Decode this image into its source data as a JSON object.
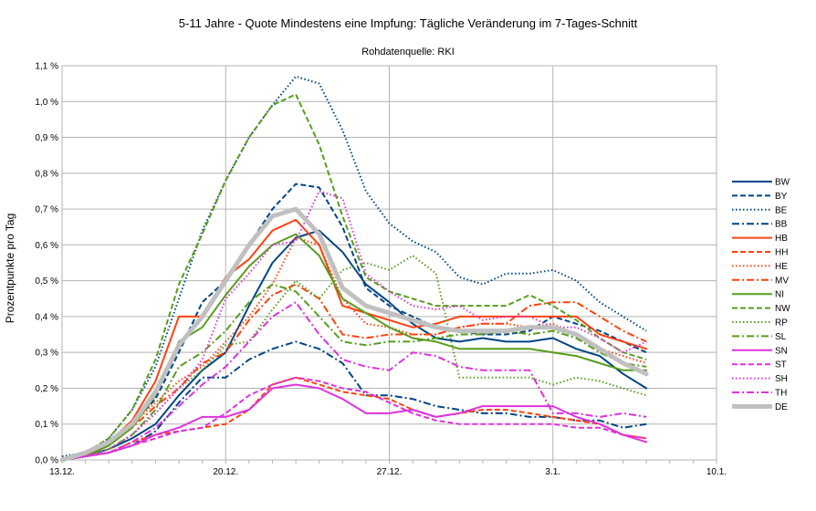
{
  "chart_data": {
    "type": "line",
    "title": "5-11 Jahre - Quote Mindestens eine Impfung: Tägliche Veränderung im 7-Tages-Schnitt",
    "subtitle": "Rohdatenquelle: RKI",
    "xlabel": "",
    "ylabel": "Prozentpunkte pro Tag",
    "x_ticks": [
      "13.12.",
      "20.12.",
      "27.12.",
      "3.1.",
      "10.1."
    ],
    "xlim": [
      0,
      28
    ],
    "y_ticks": [
      "0,0 %",
      "0,1 %",
      "0,2 %",
      "0,3 %",
      "0,4 %",
      "0,5 %",
      "0,6 %",
      "0,7 %",
      "0,8 %",
      "0,9 %",
      "1,0 %",
      "1,1 %"
    ],
    "ylim": [
      0,
      1.1
    ],
    "grid": true,
    "legend_position": "right",
    "x": [
      0,
      1,
      2,
      3,
      4,
      5,
      6,
      7,
      8,
      9,
      10,
      11,
      12,
      13,
      14,
      15,
      16,
      17,
      18,
      19,
      20,
      21,
      22,
      23,
      24,
      25
    ],
    "series": [
      {
        "name": "BW",
        "color": "#004586",
        "dash": "solid",
        "width": 2,
        "values": [
          0.0,
          0.01,
          0.03,
          0.06,
          0.1,
          0.18,
          0.25,
          0.3,
          0.43,
          0.55,
          0.62,
          0.64,
          0.58,
          0.49,
          0.44,
          0.38,
          0.34,
          0.33,
          0.34,
          0.33,
          0.33,
          0.34,
          0.31,
          0.29,
          0.24,
          0.2
        ]
      },
      {
        "name": "BY",
        "color": "#004586",
        "dash": "6,3",
        "width": 2,
        "values": [
          0.0,
          0.02,
          0.05,
          0.1,
          0.17,
          0.3,
          0.44,
          0.5,
          0.6,
          0.7,
          0.77,
          0.76,
          0.65,
          0.48,
          0.43,
          0.4,
          0.37,
          0.36,
          0.35,
          0.35,
          0.36,
          0.4,
          0.38,
          0.36,
          0.33,
          0.3
        ]
      },
      {
        "name": "BE",
        "color": "#004586",
        "dash": "1.5,2.5",
        "width": 2,
        "values": [
          0.01,
          0.02,
          0.06,
          0.14,
          0.26,
          0.45,
          0.64,
          0.78,
          0.9,
          0.99,
          1.07,
          1.05,
          0.92,
          0.75,
          0.66,
          0.61,
          0.58,
          0.51,
          0.49,
          0.52,
          0.52,
          0.53,
          0.5,
          0.44,
          0.4,
          0.36
        ]
      },
      {
        "name": "BB",
        "color": "#004586",
        "dash": "8,3,2,3",
        "width": 2,
        "values": [
          0.0,
          0.01,
          0.02,
          0.04,
          0.08,
          0.16,
          0.23,
          0.23,
          0.28,
          0.31,
          0.33,
          0.31,
          0.27,
          0.18,
          0.18,
          0.17,
          0.15,
          0.14,
          0.13,
          0.13,
          0.12,
          0.12,
          0.11,
          0.11,
          0.09,
          0.1
        ]
      },
      {
        "name": "HB",
        "color": "#ff420e",
        "dash": "solid",
        "width": 2,
        "values": [
          0.0,
          0.01,
          0.05,
          0.11,
          0.22,
          0.4,
          0.4,
          0.51,
          0.56,
          0.64,
          0.67,
          0.6,
          0.43,
          0.41,
          0.39,
          0.37,
          0.38,
          0.4,
          0.4,
          0.4,
          0.4,
          0.4,
          0.4,
          0.35,
          0.33,
          0.31
        ]
      },
      {
        "name": "HH",
        "color": "#ff420e",
        "dash": "6,3",
        "width": 2,
        "values": [
          0.0,
          0.01,
          0.02,
          0.05,
          0.07,
          0.08,
          0.09,
          0.1,
          0.14,
          0.21,
          0.23,
          0.21,
          0.19,
          0.18,
          0.17,
          0.14,
          0.12,
          0.13,
          0.14,
          0.14,
          0.13,
          0.12,
          0.11,
          0.1,
          0.07,
          0.06
        ]
      },
      {
        "name": "HE",
        "color": "#ff420e",
        "dash": "1.5,2.5",
        "width": 2,
        "values": [
          0.0,
          0.02,
          0.05,
          0.1,
          0.16,
          0.22,
          0.26,
          0.33,
          0.4,
          0.49,
          0.62,
          0.6,
          0.45,
          0.38,
          0.37,
          0.35,
          0.35,
          0.37,
          0.38,
          0.38,
          0.37,
          0.38,
          0.35,
          0.31,
          0.29,
          0.27
        ]
      },
      {
        "name": "MV",
        "color": "#ff420e",
        "dash": "8,3,2,3",
        "width": 2,
        "values": [
          0.0,
          0.01,
          0.04,
          0.09,
          0.15,
          0.2,
          0.27,
          0.3,
          0.39,
          0.46,
          0.49,
          0.45,
          0.35,
          0.34,
          0.35,
          0.35,
          0.35,
          0.37,
          0.38,
          0.38,
          0.43,
          0.44,
          0.44,
          0.4,
          0.36,
          0.33
        ]
      },
      {
        "name": "NI",
        "color": "#579d1c",
        "dash": "solid",
        "width": 2,
        "values": [
          0.0,
          0.01,
          0.04,
          0.09,
          0.18,
          0.33,
          0.37,
          0.46,
          0.54,
          0.6,
          0.63,
          0.57,
          0.45,
          0.41,
          0.37,
          0.34,
          0.33,
          0.31,
          0.31,
          0.31,
          0.31,
          0.3,
          0.29,
          0.27,
          0.25,
          0.25
        ]
      },
      {
        "name": "NW",
        "color": "#579d1c",
        "dash": "6,3",
        "width": 2,
        "values": [
          0.0,
          0.02,
          0.06,
          0.14,
          0.28,
          0.49,
          0.63,
          0.78,
          0.9,
          0.99,
          1.02,
          0.88,
          0.68,
          0.51,
          0.47,
          0.45,
          0.43,
          0.43,
          0.43,
          0.43,
          0.46,
          0.43,
          0.39,
          0.34,
          0.3,
          0.28
        ]
      },
      {
        "name": "RP",
        "color": "#579d1c",
        "dash": "1.5,2.5",
        "width": 2,
        "values": [
          0.0,
          0.01,
          0.03,
          0.07,
          0.13,
          0.2,
          0.25,
          0.32,
          0.33,
          0.42,
          0.5,
          0.45,
          0.53,
          0.55,
          0.53,
          0.57,
          0.52,
          0.23,
          0.23,
          0.23,
          0.23,
          0.21,
          0.23,
          0.22,
          0.2,
          0.18
        ]
      },
      {
        "name": "SL",
        "color": "#579d1c",
        "dash": "8,3,2,3",
        "width": 2,
        "values": [
          0.0,
          0.01,
          0.03,
          0.07,
          0.14,
          0.26,
          0.3,
          0.36,
          0.44,
          0.49,
          0.47,
          0.4,
          0.33,
          0.32,
          0.33,
          0.33,
          0.34,
          0.35,
          0.35,
          0.36,
          0.35,
          0.36,
          0.34,
          0.3,
          0.27,
          0.26
        ]
      },
      {
        "name": "SN",
        "color": "#dd33dd",
        "dash": "solid",
        "width": 2,
        "values": [
          0.0,
          0.01,
          0.02,
          0.04,
          0.07,
          0.09,
          0.12,
          0.12,
          0.14,
          0.2,
          0.21,
          0.2,
          0.17,
          0.13,
          0.13,
          0.14,
          0.12,
          0.13,
          0.15,
          0.15,
          0.15,
          0.15,
          0.12,
          0.1,
          0.07,
          0.05
        ]
      },
      {
        "name": "ST",
        "color": "#dd33dd",
        "dash": "6,3",
        "width": 2,
        "values": [
          0.0,
          0.01,
          0.02,
          0.04,
          0.06,
          0.08,
          0.09,
          0.13,
          0.18,
          0.21,
          0.23,
          0.22,
          0.2,
          0.19,
          0.16,
          0.13,
          0.11,
          0.1,
          0.1,
          0.1,
          0.1,
          0.1,
          0.09,
          0.09,
          0.07,
          0.06
        ]
      },
      {
        "name": "SH",
        "color": "#dd33dd",
        "dash": "1.5,2.5",
        "width": 2,
        "values": [
          0.0,
          0.01,
          0.03,
          0.07,
          0.13,
          0.2,
          0.28,
          0.45,
          0.52,
          0.6,
          0.61,
          0.75,
          0.73,
          0.52,
          0.47,
          0.43,
          0.42,
          0.43,
          0.39,
          0.4,
          0.4,
          0.37,
          0.37,
          0.34,
          0.3,
          0.33
        ]
      },
      {
        "name": "TH",
        "color": "#dd33dd",
        "dash": "8,3,2,3",
        "width": 2,
        "values": [
          0.0,
          0.01,
          0.02,
          0.05,
          0.09,
          0.15,
          0.21,
          0.26,
          0.33,
          0.4,
          0.44,
          0.35,
          0.28,
          0.26,
          0.25,
          0.3,
          0.29,
          0.26,
          0.25,
          0.25,
          0.25,
          0.13,
          0.13,
          0.12,
          0.13,
          0.12
        ]
      },
      {
        "name": "DE",
        "color": "#c0c0c0",
        "dash": "solid",
        "width": 5,
        "values": [
          0.0,
          0.02,
          0.05,
          0.1,
          0.19,
          0.32,
          0.4,
          0.5,
          0.6,
          0.68,
          0.7,
          0.63,
          0.48,
          0.43,
          0.41,
          0.39,
          0.37,
          0.36,
          0.36,
          0.36,
          0.37,
          0.37,
          0.35,
          0.31,
          0.27,
          0.24
        ]
      }
    ]
  }
}
